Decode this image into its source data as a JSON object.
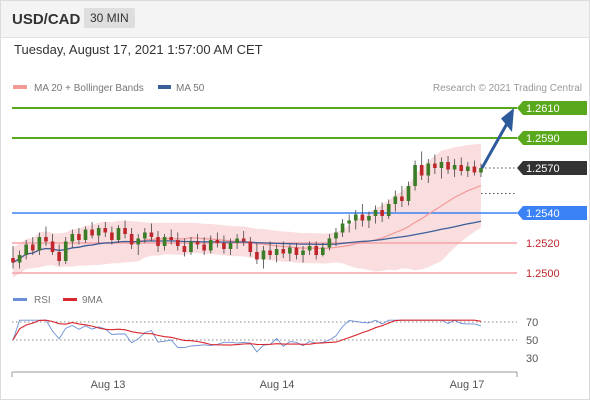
{
  "header": {
    "symbol": "USD/CAD",
    "interval": "30 MIN"
  },
  "timestamp": "Tuesday, August 17, 2021 1:57:00 AM CET",
  "legend": {
    "ma20_label": "MA 20 + Bollinger Bands",
    "ma50_label": "MA 50",
    "rsi_label": "RSI",
    "ma9_label": "9MA",
    "copyright": "Research © 2021 Trading Central"
  },
  "colors": {
    "up": "#3a7d26",
    "down": "#c0272d",
    "ma20": "#f29a9a",
    "band_fill": "#f8cfd0",
    "ma50": "#3b5f99",
    "resistance": "#5aa81b",
    "pivot": "#3b82f6",
    "support": "#f6a3a8",
    "current": "#333333",
    "rsi": "#6b8fd6",
    "rsi_ma": "#d9262e",
    "arrow": "#2d5a9b"
  },
  "chart_data": [
    {
      "type": "candlestick",
      "title": "USD/CAD",
      "interval": "30 MIN",
      "x_ticks": [
        "Aug 13",
        "Aug 14",
        "Aug 17"
      ],
      "ylim": [
        1.2495,
        1.262
      ],
      "levels": [
        {
          "value": 1.261,
          "label": "1.2610",
          "kind": "resistance"
        },
        {
          "value": 1.259,
          "label": "1.2590",
          "kind": "resistance"
        },
        {
          "value": 1.257,
          "label": "1.2570",
          "kind": "current"
        },
        {
          "value": 1.254,
          "label": "1.2540",
          "kind": "pivot"
        },
        {
          "value": 1.252,
          "label": "1.2520",
          "kind": "support"
        },
        {
          "value": 1.25,
          "label": "1.2500",
          "kind": "support"
        }
      ],
      "ohlc": [
        [
          1.251,
          1.2518,
          1.2503,
          1.2507
        ],
        [
          1.2507,
          1.2515,
          1.2503,
          1.2512
        ],
        [
          1.2512,
          1.2522,
          1.2509,
          1.2519
        ],
        [
          1.2519,
          1.2524,
          1.2512,
          1.2515
        ],
        [
          1.2515,
          1.2527,
          1.2512,
          1.2524
        ],
        [
          1.2524,
          1.2531,
          1.2518,
          1.2521
        ],
        [
          1.2521,
          1.2526,
          1.2512,
          1.2514
        ],
        [
          1.2514,
          1.2519,
          1.2505,
          1.2508
        ],
        [
          1.2508,
          1.2524,
          1.2506,
          1.2521
        ],
        [
          1.2521,
          1.2529,
          1.2517,
          1.2526
        ],
        [
          1.2526,
          1.253,
          1.2519,
          1.2522
        ],
        [
          1.2522,
          1.2531,
          1.252,
          1.2529
        ],
        [
          1.2529,
          1.2534,
          1.2523,
          1.2525
        ],
        [
          1.2525,
          1.2532,
          1.252,
          1.253
        ],
        [
          1.253,
          1.2534,
          1.2524,
          1.2527
        ],
        [
          1.2527,
          1.2531,
          1.2519,
          1.2522
        ],
        [
          1.2522,
          1.2532,
          1.252,
          1.253
        ],
        [
          1.253,
          1.2535,
          1.2523,
          1.2526
        ],
        [
          1.2526,
          1.253,
          1.2516,
          1.2519
        ],
        [
          1.2519,
          1.2526,
          1.2512,
          1.2523
        ],
        [
          1.2523,
          1.253,
          1.252,
          1.2527
        ],
        [
          1.2527,
          1.2533,
          1.2521,
          1.2524
        ],
        [
          1.2524,
          1.2528,
          1.2514,
          1.2518
        ],
        [
          1.2518,
          1.2526,
          1.2515,
          1.2524
        ],
        [
          1.2524,
          1.2529,
          1.2519,
          1.2522
        ],
        [
          1.2522,
          1.2527,
          1.2515,
          1.2518
        ],
        [
          1.2518,
          1.2523,
          1.2511,
          1.2514
        ],
        [
          1.2514,
          1.2524,
          1.2512,
          1.2521
        ],
        [
          1.2521,
          1.2526,
          1.2516,
          1.2519
        ],
        [
          1.2519,
          1.2524,
          1.2512,
          1.2515
        ],
        [
          1.2515,
          1.2525,
          1.2513,
          1.2522
        ],
        [
          1.2522,
          1.2527,
          1.2517,
          1.252
        ],
        [
          1.252,
          1.2525,
          1.2513,
          1.2516
        ],
        [
          1.2516,
          1.2523,
          1.2512,
          1.252
        ],
        [
          1.252,
          1.2526,
          1.2516,
          1.2523
        ],
        [
          1.2523,
          1.2528,
          1.2518,
          1.2521
        ],
        [
          1.2521,
          1.2524,
          1.2511,
          1.2514
        ],
        [
          1.2514,
          1.252,
          1.2506,
          1.2509
        ],
        [
          1.2509,
          1.2518,
          1.2503,
          1.2515
        ],
        [
          1.2515,
          1.2521,
          1.2509,
          1.2512
        ],
        [
          1.2512,
          1.2519,
          1.2507,
          1.2516
        ],
        [
          1.2516,
          1.2521,
          1.251,
          1.2513
        ],
        [
          1.2513,
          1.2519,
          1.2508,
          1.2517
        ],
        [
          1.2517,
          1.252,
          1.2509,
          1.2512
        ],
        [
          1.2512,
          1.2518,
          1.2507,
          1.2515
        ],
        [
          1.2515,
          1.2521,
          1.2512,
          1.2518
        ],
        [
          1.2518,
          1.2521,
          1.2509,
          1.2512
        ],
        [
          1.2512,
          1.252,
          1.2511,
          1.2517
        ],
        [
          1.2517,
          1.2526,
          1.2515,
          1.2523
        ],
        [
          1.2523,
          1.253,
          1.2518,
          1.2527
        ],
        [
          1.2527,
          1.2536,
          1.2524,
          1.2533
        ],
        [
          1.2533,
          1.2539,
          1.2527,
          1.2535
        ],
        [
          1.2535,
          1.2542,
          1.2529,
          1.2539
        ],
        [
          1.2539,
          1.2546,
          1.2531,
          1.2535
        ],
        [
          1.2535,
          1.2541,
          1.253,
          1.2538
        ],
        [
          1.2538,
          1.2545,
          1.2533,
          1.2542
        ],
        [
          1.2542,
          1.2547,
          1.2534,
          1.2538
        ],
        [
          1.2538,
          1.2549,
          1.2536,
          1.2546
        ],
        [
          1.2546,
          1.2555,
          1.2541,
          1.2551
        ],
        [
          1.2551,
          1.2558,
          1.2544,
          1.2548
        ],
        [
          1.2548,
          1.2561,
          1.2545,
          1.2558
        ],
        [
          1.2558,
          1.2575,
          1.2555,
          1.2572
        ],
        [
          1.2572,
          1.2581,
          1.2562,
          1.2565
        ],
        [
          1.2565,
          1.2576,
          1.256,
          1.2573
        ],
        [
          1.2573,
          1.2579,
          1.2566,
          1.257
        ],
        [
          1.257,
          1.2577,
          1.2563,
          1.2574
        ],
        [
          1.2574,
          1.2578,
          1.2566,
          1.2569
        ],
        [
          1.2569,
          1.2576,
          1.2564,
          1.2572
        ],
        [
          1.2572,
          1.2577,
          1.2565,
          1.2568
        ],
        [
          1.2568,
          1.2574,
          1.2564,
          1.2571
        ],
        [
          1.2571,
          1.2575,
          1.2565,
          1.2567
        ],
        [
          1.2567,
          1.2573,
          1.2564,
          1.257
        ]
      ]
    },
    {
      "type": "line",
      "title": "RSI",
      "series": [
        {
          "name": "RSI"
        },
        {
          "name": "9MA"
        }
      ],
      "ylim": [
        20,
        80
      ],
      "y_ticks": [
        70,
        50,
        30
      ]
    }
  ]
}
